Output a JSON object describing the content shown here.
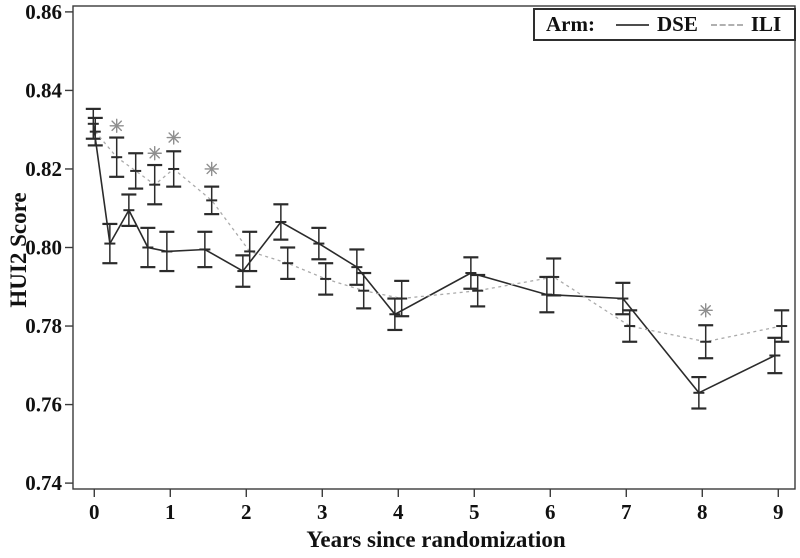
{
  "figure": {
    "xlabel": "Years since randomization",
    "ylabel": "HUI2 Score",
    "legend": {
      "title": "Arm:",
      "entries": [
        {
          "label": "DSE",
          "style": "solid"
        },
        {
          "label": "ILI",
          "style": "dashed"
        }
      ]
    }
  },
  "chart_data": {
    "type": "line",
    "title": "",
    "xlabel": "Years since randomization",
    "ylabel": "HUI2 Score",
    "xlim": [
      -0.28,
      9.22
    ],
    "ylim": [
      0.7385,
      0.8615
    ],
    "xticks": [
      0,
      1,
      2,
      3,
      4,
      5,
      6,
      7,
      8,
      9
    ],
    "xtick_labels": [
      "0",
      "1",
      "2",
      "3",
      "4",
      "5",
      "6",
      "7",
      "8",
      "9"
    ],
    "yticks": [
      0.74,
      0.76,
      0.78,
      0.8,
      0.82,
      0.84,
      0.86
    ],
    "ytick_labels": [
      "0.74",
      "0.76",
      "0.78",
      "0.80",
      "0.82",
      "0.84",
      "0.86"
    ],
    "grid": false,
    "legend_position": "top-right",
    "x": [
      0,
      0.25,
      0.5,
      0.75,
      1,
      1.5,
      2,
      2.5,
      3,
      3.5,
      4,
      5,
      6,
      7,
      8,
      9
    ],
    "series": [
      {
        "name": "DSE",
        "line_style": "solid",
        "line_color": "#2b2b2b",
        "errorbar_color": "#2b2b2b",
        "values": [
          0.8315,
          0.801,
          0.8095,
          0.8,
          0.799,
          0.7995,
          0.794,
          0.8065,
          0.801,
          0.795,
          0.783,
          0.7935,
          0.788,
          0.787,
          0.763,
          0.7725
        ],
        "errors": [
          0.0038,
          0.005,
          0.004,
          0.005,
          0.005,
          0.0045,
          0.004,
          0.0045,
          0.004,
          0.0045,
          0.004,
          0.004,
          0.0045,
          0.004,
          0.004,
          0.0045
        ],
        "significant_x": []
      },
      {
        "name": "ILI",
        "line_style": "dashed",
        "line_color": "#ababab",
        "errorbar_color": "#2b2b2b",
        "values": [
          0.8295,
          0.823,
          0.8195,
          0.816,
          0.82,
          0.812,
          0.799,
          0.796,
          0.792,
          0.789,
          0.787,
          0.789,
          0.7925,
          0.78,
          0.776,
          0.78
        ],
        "errors": [
          0.0035,
          0.005,
          0.0045,
          0.005,
          0.0045,
          0.0035,
          0.005,
          0.004,
          0.004,
          0.0045,
          0.0045,
          0.004,
          0.0047,
          0.004,
          0.0042,
          0.004
        ],
        "significant_x": [
          0.25,
          0.75,
          1,
          1.5,
          8
        ]
      }
    ],
    "annotations": {
      "significance_marker": "8-ray asterisk above ILI point",
      "marker_color": "#8f8f8f"
    }
  }
}
